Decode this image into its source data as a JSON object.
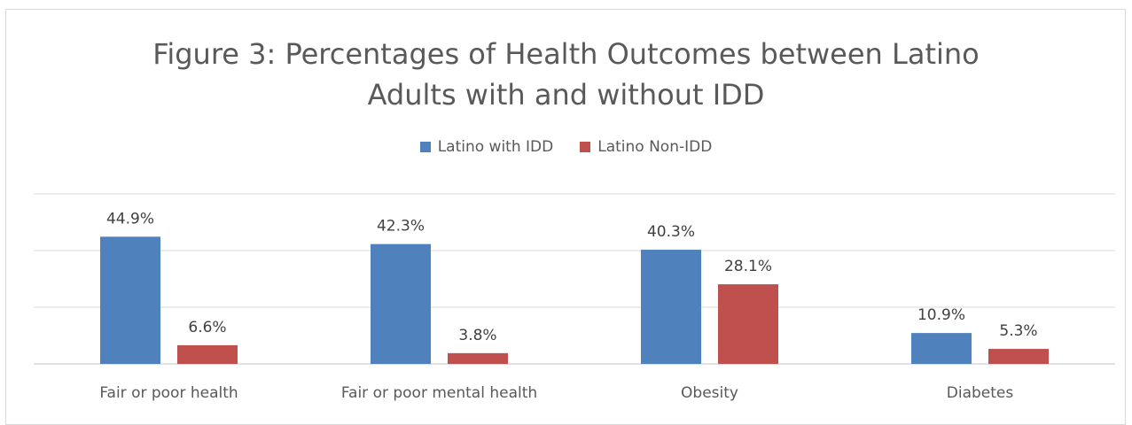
{
  "chart_data": {
    "type": "bar",
    "title_line1": "Figure 3: Percentages of Health Outcomes between Latino",
    "title_line2": "Adults with and without IDD",
    "categories": [
      "Fair or poor health",
      "Fair or poor mental health",
      "Obesity",
      "Diabetes"
    ],
    "series": [
      {
        "name": "Latino with IDD",
        "color": "#4f81bd",
        "values": [
          44.9,
          42.3,
          40.3,
          10.9
        ],
        "labels": [
          "44.9%",
          "42.3%",
          "40.3%",
          "10.9%"
        ]
      },
      {
        "name": "Latino Non-IDD",
        "color": "#c0504d",
        "values": [
          6.6,
          3.8,
          28.1,
          5.3
        ],
        "labels": [
          "6.6%",
          "3.8%",
          "28.1%",
          "5.3%"
        ]
      }
    ],
    "ylim": [
      0,
      60
    ],
    "grid": true,
    "legend_position": "top"
  }
}
